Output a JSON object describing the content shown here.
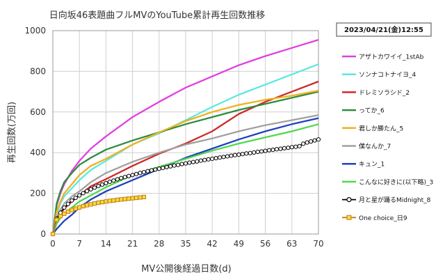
{
  "chart_data": {
    "type": "line",
    "title": "日向坂46表題曲フルMVのYouTube累計再生回数推移",
    "xlabel": "MV公開後経過日数(d)",
    "ylabel": "再生回数(万回)",
    "date_label": "2023/04/21(金)12:55",
    "xlim": [
      0,
      70
    ],
    "ylim": [
      0,
      1000
    ],
    "x_ticks": [
      0,
      7,
      14,
      21,
      28,
      35,
      42,
      49,
      56,
      63,
      70
    ],
    "y_ticks": [
      0,
      200,
      400,
      600,
      800,
      1000
    ],
    "grid": true,
    "legend_position": "right",
    "series": [
      {
        "name": "アザトカワイイ_1stAb",
        "color": "#e040e0",
        "marker": "none",
        "x": [
          0,
          1,
          2,
          3,
          5,
          7,
          10,
          14,
          21,
          28,
          35,
          42,
          49,
          56,
          63,
          70
        ],
        "y": [
          0,
          140,
          200,
          245,
          310,
          360,
          420,
          480,
          575,
          650,
          720,
          775,
          830,
          875,
          915,
          955
        ]
      },
      {
        "name": "ソンナコトナイヨ_4",
        "color": "#5ce8e0",
        "marker": "none",
        "x": [
          0,
          1,
          2,
          3,
          5,
          7,
          10,
          14,
          21,
          28,
          35,
          42,
          49,
          56,
          63,
          70
        ],
        "y": [
          0,
          100,
          150,
          185,
          225,
          265,
          315,
          360,
          440,
          495,
          560,
          625,
          685,
          735,
          785,
          835
        ]
      },
      {
        "name": "ドレミソラシド_2",
        "color": "#d02828",
        "marker": "none",
        "x": [
          0,
          1,
          2,
          3,
          5,
          7,
          10,
          14,
          21,
          28,
          35,
          42,
          49,
          56,
          63,
          70
        ],
        "y": [
          0,
          60,
          100,
          125,
          160,
          190,
          235,
          270,
          335,
          395,
          445,
          505,
          590,
          650,
          700,
          750
        ]
      },
      {
        "name": "ってか_6",
        "color": "#2e8b3e",
        "marker": "none",
        "x": [
          0,
          1,
          2,
          3,
          5,
          7,
          10,
          14,
          21,
          28,
          35,
          42,
          49,
          56,
          63,
          70
        ],
        "y": [
          0,
          150,
          210,
          255,
          300,
          340,
          375,
          415,
          460,
          500,
          540,
          575,
          610,
          640,
          670,
          700
        ]
      },
      {
        "name": "君しか勝たん_5",
        "color": "#f0b020",
        "marker": "none",
        "x": [
          0,
          1,
          2,
          3,
          5,
          7,
          10,
          14,
          21,
          28,
          35,
          42,
          49,
          56,
          63,
          70
        ],
        "y": [
          0,
          110,
          160,
          200,
          245,
          290,
          335,
          370,
          440,
          500,
          555,
          600,
          635,
          660,
          680,
          705
        ]
      },
      {
        "name": "僕なんか_7",
        "color": "#a0a0a0",
        "marker": "none",
        "x": [
          0,
          1,
          2,
          3,
          5,
          7,
          10,
          14,
          21,
          28,
          35,
          42,
          49,
          56,
          63,
          70
        ],
        "y": [
          0,
          80,
          120,
          150,
          185,
          210,
          255,
          300,
          355,
          400,
          440,
          470,
          505,
          535,
          560,
          585
        ]
      },
      {
        "name": "キュン_1",
        "color": "#2040c0",
        "marker": "none",
        "x": [
          0,
          1,
          2,
          3,
          5,
          7,
          10,
          14,
          21,
          28,
          35,
          42,
          49,
          56,
          63,
          70
        ],
        "y": [
          0,
          25,
          45,
          65,
          95,
          130,
          170,
          210,
          265,
          320,
          375,
          420,
          465,
          505,
          540,
          570
        ]
      },
      {
        "name": "こんなに好きに(以下略)_3",
        "color": "#50d850",
        "marker": "none",
        "x": [
          0,
          1,
          2,
          3,
          5,
          7,
          10,
          14,
          21,
          28,
          35,
          42,
          49,
          56,
          63,
          70
        ],
        "y": [
          0,
          50,
          80,
          100,
          130,
          160,
          190,
          230,
          290,
          330,
          370,
          410,
          445,
          475,
          505,
          540
        ]
      },
      {
        "name": "月と星が踊るMidnight_8",
        "color": "#000000",
        "marker": "circle",
        "x": [
          0,
          1,
          2,
          3,
          4,
          5,
          6,
          7,
          8,
          9,
          10,
          11,
          12,
          13,
          14,
          15,
          16,
          17,
          18,
          19,
          20,
          21,
          22,
          23,
          24,
          25,
          26,
          27,
          28,
          29,
          30,
          31,
          32,
          33,
          34,
          35,
          36,
          37,
          38,
          39,
          40,
          41,
          42,
          43,
          44,
          45,
          46,
          47,
          48,
          49,
          50,
          51,
          52,
          53,
          54,
          55,
          56,
          57,
          58,
          59,
          60,
          61,
          62,
          63,
          64,
          65,
          66,
          67,
          68,
          69,
          70
        ],
        "y": [
          0,
          75,
          105,
          130,
          148,
          165,
          178,
          190,
          201,
          211,
          220,
          228,
          236,
          243,
          250,
          257,
          263,
          269,
          275,
          280,
          285,
          290,
          295,
          300,
          304,
          309,
          313,
          317,
          321,
          325,
          329,
          333,
          337,
          340,
          344,
          347,
          351,
          354,
          357,
          361,
          364,
          367,
          370,
          373,
          376,
          379,
          382,
          385,
          388,
          390,
          393,
          396,
          398,
          401,
          404,
          406,
          409,
          412,
          414,
          417,
          419,
          422,
          424,
          427,
          429,
          432,
          444,
          450,
          455,
          460,
          465
        ]
      },
      {
        "name": "One choice_日9",
        "color": "#c8781a",
        "fill": "#f2de38",
        "marker": "square",
        "x": [
          0,
          1,
          2,
          3,
          4,
          5,
          6,
          7,
          8,
          9,
          10,
          11,
          12,
          13,
          14,
          15,
          16,
          17,
          18,
          19,
          20,
          21,
          22,
          23,
          24
        ],
        "y": [
          0,
          70,
          88,
          100,
          110,
          118,
          125,
          131,
          137,
          142,
          146,
          150,
          154,
          157,
          160,
          163,
          165,
          168,
          170,
          172,
          174,
          176,
          178,
          180,
          182
        ]
      }
    ]
  }
}
